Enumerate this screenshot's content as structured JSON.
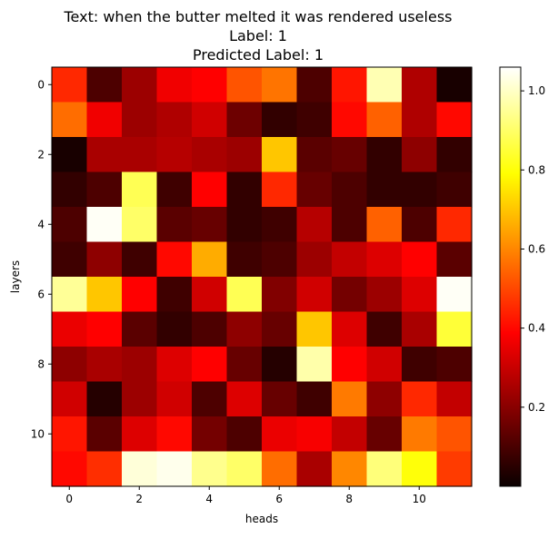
{
  "chart_data": {
    "type": "heatmap",
    "title_lines": [
      "Text: when the butter melted it was rendered useless",
      "Label: 1",
      "Predicted Label: 1"
    ],
    "xlabel": "heads",
    "ylabel": "layers",
    "x_ticks": [
      "0",
      "2",
      "4",
      "6",
      "8",
      "10"
    ],
    "y_ticks": [
      "0",
      "2",
      "4",
      "6",
      "8",
      "10"
    ],
    "colormap": "hot",
    "colorbar": {
      "range": [
        0.0,
        1.06
      ],
      "ticks": [
        "0.2",
        "0.4",
        "0.6",
        "0.8",
        "1.0"
      ]
    },
    "rows": 12,
    "cols": 12,
    "values": [
      [
        0.45,
        0.1,
        0.22,
        0.35,
        0.38,
        0.52,
        0.57,
        0.1,
        0.42,
        0.98,
        0.25,
        0.02
      ],
      [
        0.56,
        0.35,
        0.22,
        0.25,
        0.3,
        0.15,
        0.06,
        0.08,
        0.4,
        0.54,
        0.25,
        0.4
      ],
      [
        0.02,
        0.24,
        0.24,
        0.26,
        0.24,
        0.22,
        0.7,
        0.12,
        0.14,
        0.06,
        0.2,
        0.06
      ],
      [
        0.06,
        0.1,
        0.88,
        0.08,
        0.38,
        0.06,
        0.45,
        0.14,
        0.1,
        0.06,
        0.06,
        0.08
      ],
      [
        0.1,
        1.05,
        0.9,
        0.12,
        0.14,
        0.06,
        0.08,
        0.26,
        0.1,
        0.54,
        0.1,
        0.45
      ],
      [
        0.08,
        0.2,
        0.08,
        0.4,
        0.66,
        0.08,
        0.1,
        0.22,
        0.28,
        0.32,
        0.38,
        0.12
      ],
      [
        0.95,
        0.7,
        0.38,
        0.08,
        0.3,
        0.88,
        0.18,
        0.3,
        0.16,
        0.22,
        0.32,
        1.05
      ],
      [
        0.34,
        0.38,
        0.12,
        0.06,
        0.1,
        0.2,
        0.14,
        0.7,
        0.32,
        0.08,
        0.24,
        0.85
      ],
      [
        0.2,
        0.24,
        0.22,
        0.32,
        0.38,
        0.14,
        0.04,
        0.97,
        0.38,
        0.3,
        0.08,
        0.1
      ],
      [
        0.3,
        0.04,
        0.22,
        0.3,
        0.1,
        0.32,
        0.14,
        0.08,
        0.58,
        0.2,
        0.45,
        0.28
      ],
      [
        0.42,
        0.12,
        0.32,
        0.4,
        0.16,
        0.1,
        0.34,
        0.36,
        0.28,
        0.14,
        0.58,
        0.52
      ],
      [
        0.4,
        0.46,
        1.02,
        1.04,
        0.94,
        0.9,
        0.56,
        0.24,
        0.6,
        0.92,
        0.8,
        0.48
      ]
    ]
  }
}
